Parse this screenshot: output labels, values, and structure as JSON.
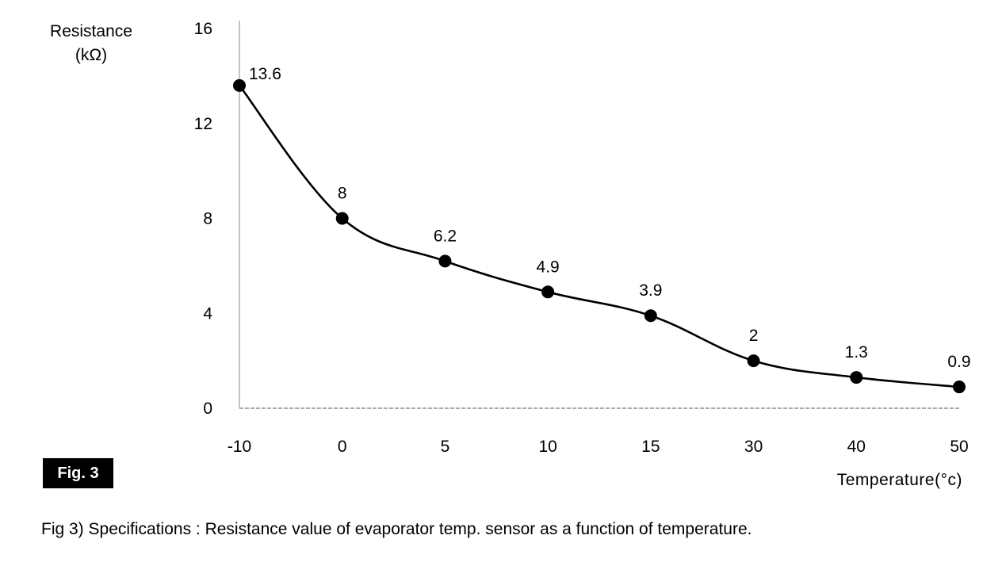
{
  "chart_data": {
    "type": "line",
    "categories": [
      "-10",
      "0",
      "5",
      "10",
      "15",
      "30",
      "40",
      "50"
    ],
    "values": [
      13.6,
      8,
      6.2,
      4.9,
      3.9,
      2,
      1.3,
      0.9
    ],
    "data_labels": [
      "13.6",
      "8",
      "6.2",
      "4.9",
      "3.9",
      "2",
      "1.3",
      "0.9"
    ],
    "ylabel": "Resistance",
    "ylabel_unit": "(kΩ)",
    "xlabel": "Temperature(°c)",
    "ylim": [
      0,
      16
    ],
    "yticks": [
      "0",
      "4",
      "8",
      "12",
      "16"
    ],
    "grid": false,
    "markers": "filled-circle",
    "line_style": "smooth"
  },
  "figure_badge": "Fig. 3",
  "caption": "Fig 3) Specifications : Resistance value of evaporator temp. sensor as a function of temperature."
}
